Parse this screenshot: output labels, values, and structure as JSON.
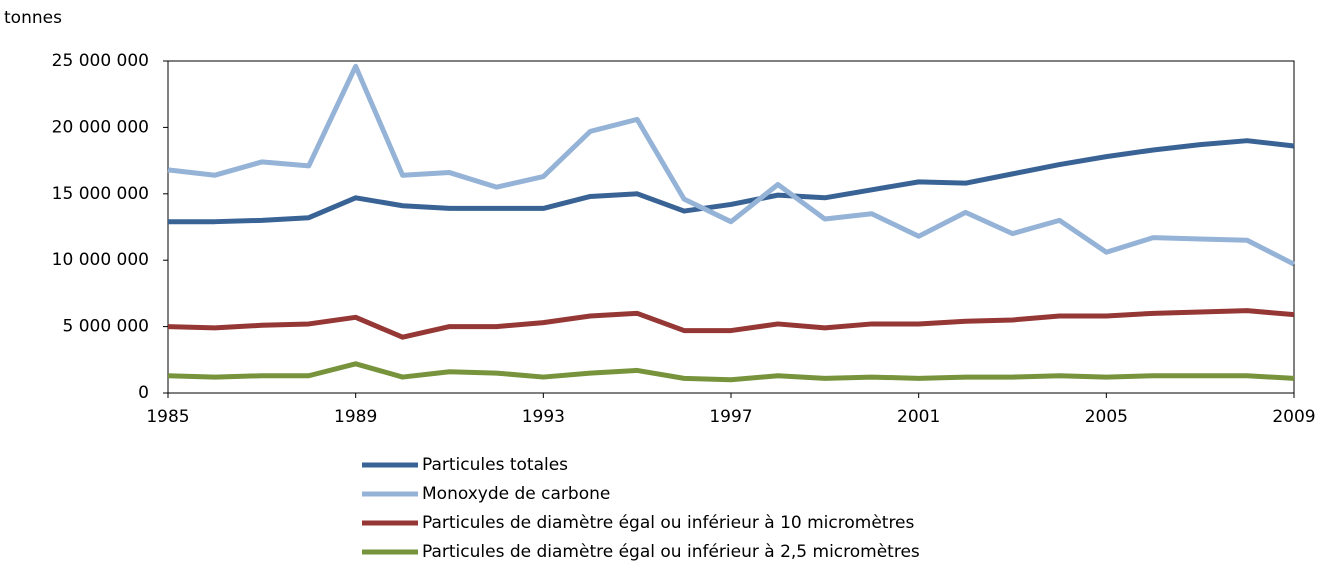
{
  "chart_data": {
    "type": "line",
    "y_label": "tonnes",
    "x": [
      1985,
      1986,
      1987,
      1988,
      1989,
      1990,
      1991,
      1992,
      1993,
      1994,
      1995,
      1996,
      1997,
      1998,
      1999,
      2000,
      2001,
      2002,
      2003,
      2004,
      2005,
      2006,
      2007,
      2008,
      2009
    ],
    "xlim": [
      1985,
      2009
    ],
    "xticks": [
      1985,
      1989,
      1993,
      1997,
      2001,
      2005,
      2009
    ],
    "ylim": [
      0,
      25000000
    ],
    "yticks": [
      0,
      {
        "value": 5000000,
        "label": "5 000 000"
      },
      {
        "value": 10000000,
        "label": "10 000 000"
      },
      {
        "value": 15000000,
        "label": "15 000 000"
      },
      {
        "value": 20000000,
        "label": "20 000 000"
      },
      {
        "value": 25000000,
        "label": "25 000 000"
      }
    ],
    "grid": false,
    "legend": "bottom",
    "series": [
      {
        "name": "Particules totales",
        "color": "#3a6395",
        "values": [
          12900000,
          12900000,
          13000000,
          13200000,
          14700000,
          14100000,
          13900000,
          13900000,
          13900000,
          14800000,
          15000000,
          13700000,
          14200000,
          14900000,
          14700000,
          15300000,
          15900000,
          15800000,
          16500000,
          17200000,
          17800000,
          18300000,
          18700000,
          19000000,
          18600000
        ]
      },
      {
        "name": "Monoxyde de carbone",
        "color": "#95b3d7",
        "values": [
          16800000,
          16400000,
          17400000,
          17100000,
          24600000,
          16400000,
          16600000,
          15500000,
          16300000,
          19700000,
          20600000,
          14600000,
          12900000,
          15700000,
          13100000,
          13500000,
          11800000,
          13600000,
          12000000,
          13000000,
          10600000,
          11700000,
          11600000,
          11500000,
          9700000
        ]
      },
      {
        "name": "Particules de diamètre égal ou inférieur à 10 micromètres",
        "color": "#953735",
        "values": [
          5000000,
          4900000,
          5100000,
          5200000,
          5700000,
          4200000,
          5000000,
          5000000,
          5300000,
          5800000,
          6000000,
          4700000,
          4700000,
          5200000,
          4900000,
          5200000,
          5200000,
          5400000,
          5500000,
          5800000,
          5800000,
          6000000,
          6100000,
          6200000,
          5900000
        ]
      },
      {
        "name": "Particules de diamètre égal ou inférieur à 2,5 micromètres",
        "color": "#77933c",
        "values": [
          1300000,
          1200000,
          1300000,
          1300000,
          2200000,
          1200000,
          1600000,
          1500000,
          1200000,
          1500000,
          1700000,
          1100000,
          1000000,
          1300000,
          1100000,
          1200000,
          1100000,
          1200000,
          1200000,
          1300000,
          1200000,
          1300000,
          1300000,
          1300000,
          1100000
        ]
      }
    ]
  }
}
